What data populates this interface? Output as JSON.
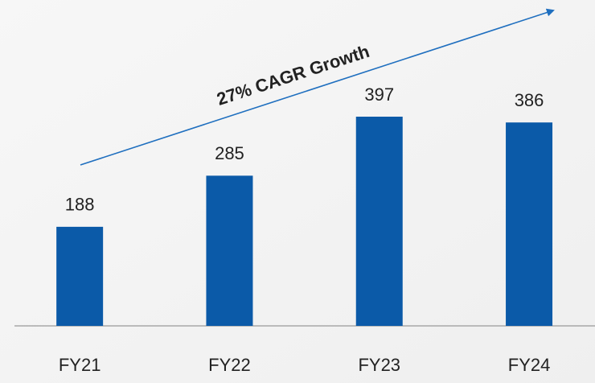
{
  "chart_data": {
    "type": "bar",
    "annotation": "27% CAGR Growth",
    "categories": [
      "FY21",
      "FY22",
      "FY23",
      "FY24"
    ],
    "values": [
      188,
      285,
      397,
      386
    ],
    "color": "#0b5aa8"
  }
}
